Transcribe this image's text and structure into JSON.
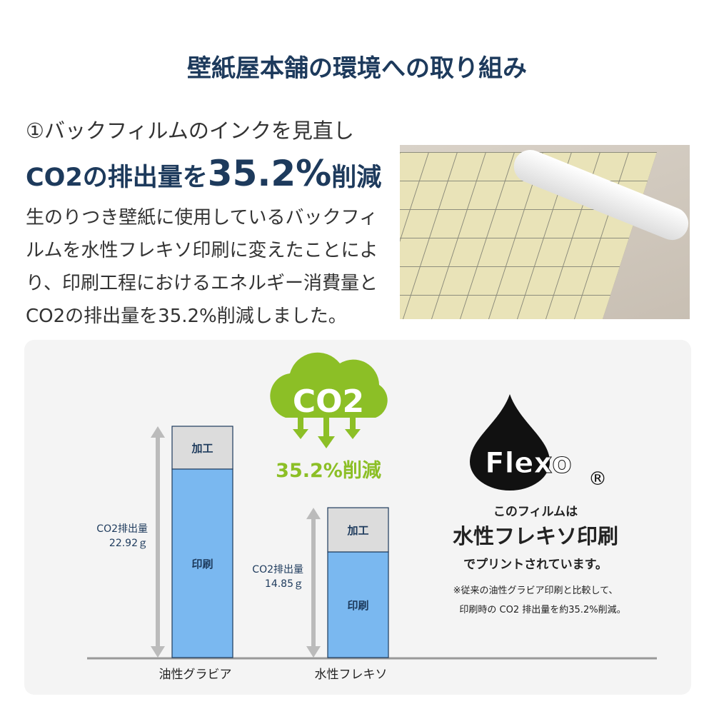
{
  "title": "壁紙屋本舗の環境への取り組み",
  "subtitle_line1": "①バックフィルムのインクを見直し",
  "subtitle_line2_pre": "CO2の排出量を",
  "subtitle_line2_big": "35.2%",
  "subtitle_line2_post": "削減",
  "body": "生のりつき壁紙に使用しているバックフィルムを水性フレキソ印刷に変えたことにより、印刷工程におけるエネルギー消費量とCO2の排出量を35.2%削減しました。",
  "badge": {
    "co2_text": "CO2",
    "reduction": "35.2%削減",
    "color": "#8cbf26"
  },
  "flexo": {
    "logo": "Flexo",
    "registered": "®",
    "line1": "このフィルムは",
    "line2": "水性フレキソ印刷",
    "line3": "でプリントされています。",
    "note1": "※従来の油性グラビア印刷と比較して、",
    "note2": "印刷時の CO2 排出量を約35.2%削減。"
  },
  "chart_data": {
    "type": "bar",
    "stacked": true,
    "categories": [
      "油性グラビア",
      "水性フレキソ"
    ],
    "totals": [
      22.92,
      14.85
    ],
    "total_labels": [
      [
        "CO2排出量",
        "22.92ｇ"
      ],
      [
        "CO2排出量",
        "14.85ｇ"
      ]
    ],
    "series": [
      {
        "name": "印刷",
        "values": [
          18.68,
          10.47
        ],
        "color": "#7ab8f0"
      },
      {
        "name": "加工",
        "values": [
          4.24,
          4.38
        ],
        "color": "#dcdcdc"
      }
    ],
    "unit": "g",
    "ylim": [
      0,
      22.92
    ],
    "grid": false
  }
}
